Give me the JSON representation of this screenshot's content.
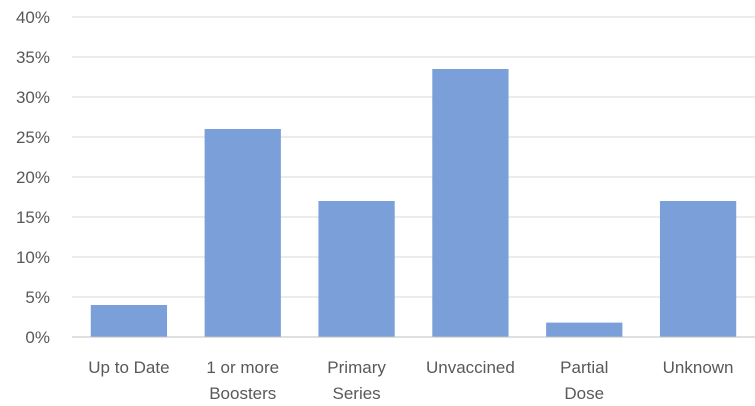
{
  "chart_data": {
    "type": "bar",
    "categories": [
      [
        "Up to Date"
      ],
      [
        "1 or more",
        "Boosters"
      ],
      [
        "Primary",
        "Series"
      ],
      [
        "Unvaccined"
      ],
      [
        "Partial",
        "Dose"
      ],
      [
        "Unknown"
      ]
    ],
    "values": [
      4.0,
      26.0,
      17.0,
      33.5,
      1.8,
      17.0
    ],
    "ylim": [
      0,
      40
    ],
    "yticks": [
      "0%",
      "5%",
      "10%",
      "15%",
      "20%",
      "25%",
      "30%",
      "35%",
      "40%"
    ],
    "ytick_values": [
      0,
      5,
      10,
      15,
      20,
      25,
      30,
      35,
      40
    ],
    "grid": true,
    "colors": {
      "bar": "#7a9fd9",
      "grid": "#d9d9d9",
      "text": "#595959"
    }
  }
}
